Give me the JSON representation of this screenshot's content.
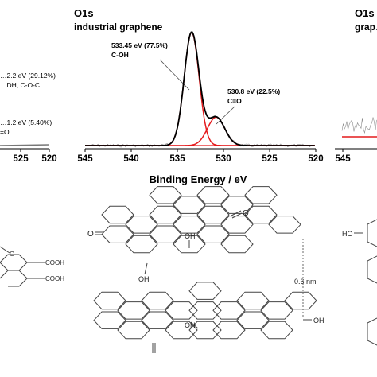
{
  "chart_data": [
    {
      "type": "line",
      "title": "O1s",
      "subtitle": "",
      "xlabel": "",
      "ylabel": "",
      "xlim": [
        530,
        520
      ],
      "ticks": [
        "525",
        "520"
      ],
      "annotations": [
        {
          "text": "…2.2 eV (29.12%)"
        },
        {
          "text": "…DH, C-O-C"
        },
        {
          "text": "…1.2 eV (5.40%)"
        },
        {
          "text": "=O"
        }
      ]
    },
    {
      "type": "line",
      "title": "O1s",
      "subtitle": "industrial graphene",
      "xlabel": "Binding Energy / eV",
      "ylabel": "",
      "xlim": [
        545,
        520
      ],
      "ticks": [
        "545",
        "540",
        "535",
        "530",
        "525",
        "520"
      ],
      "annotations": [
        {
          "text": "533.45 eV (77.5%)",
          "text2": "C-OH"
        },
        {
          "text": "530.8 eV (22.5%)",
          "text2": "C=O"
        }
      ],
      "series": [
        {
          "color": "#000000",
          "peaks": [
            {
              "center": 533.45,
              "fwhm": 1.9,
              "area_pct": 77.5
            },
            {
              "center": 530.8,
              "fwhm": 2.2,
              "area_pct": 22.5
            }
          ]
        },
        {
          "color": "#e41a1c",
          "center": 533.45,
          "area_pct": 77.5
        },
        {
          "color": "#e41a1c",
          "center": 530.8,
          "area_pct": 22.5
        }
      ]
    },
    {
      "type": "line",
      "title": "O1s",
      "subtitle": "grap…",
      "xlabel": "",
      "ylabel": "",
      "ticks": [
        "545"
      ],
      "annotations": []
    }
  ],
  "diagram": {
    "left_groups": [
      "COOH",
      "COOH"
    ],
    "center_groups": [
      "O",
      "O",
      "OH",
      "OH",
      "OH",
      "OH"
    ],
    "right_groups": [
      "HO"
    ],
    "spacing_label": "0.6 nm"
  },
  "colors": {
    "raw": "#000000",
    "fit": "#e41a1c",
    "noise": "#8c8c8c",
    "structure": "#444444"
  }
}
